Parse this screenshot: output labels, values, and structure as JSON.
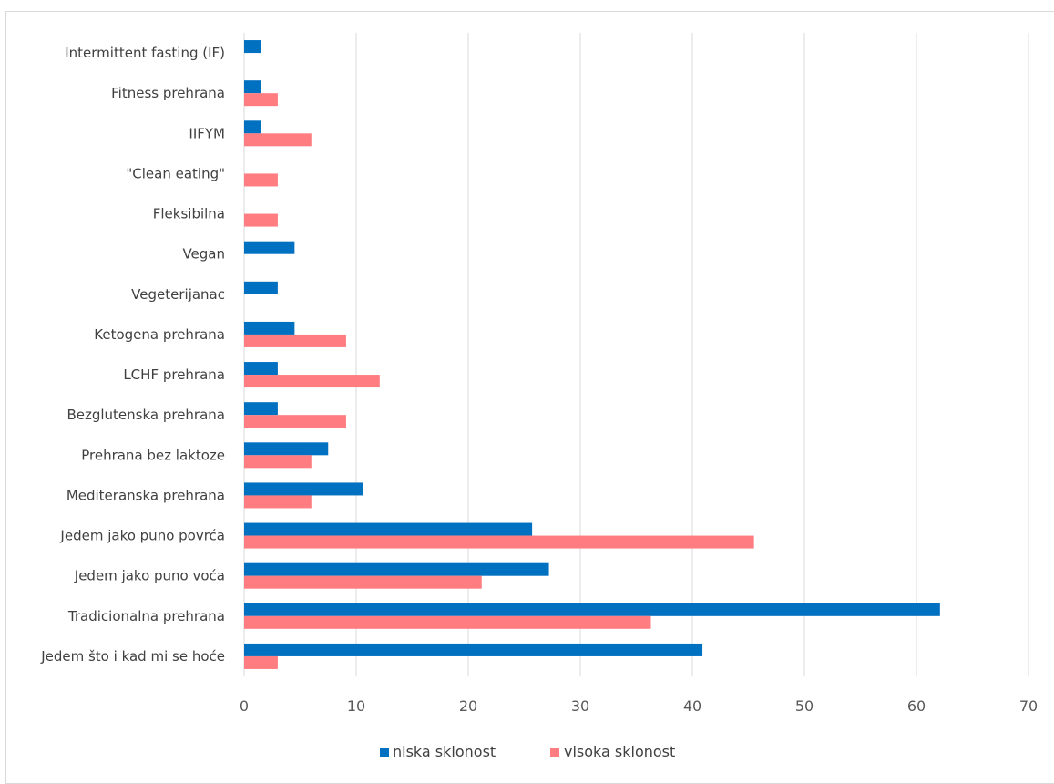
{
  "chart_data": {
    "type": "bar",
    "orientation": "horizontal",
    "categories": [
      "Intermittent fasting (IF)",
      "Fitness prehrana",
      "IIFYM",
      "\"Clean eating\"",
      "Fleksibilna",
      "Vegan",
      "Vegeterijanac",
      "Ketogena prehrana",
      "LCHF prehrana",
      "Bezglutenska prehrana",
      "Prehrana bez laktoze",
      "Mediteranska prehrana",
      "Jedem jako puno povrća",
      "Jedem jako puno voća",
      "Tradicionalna prehrana",
      "Jedem što i kad mi se hoće"
    ],
    "series": [
      {
        "name": "niska sklonost",
        "color": "#0070C0",
        "values": [
          1.5,
          1.5,
          1.5,
          0,
          0,
          4.5,
          3,
          4.5,
          3,
          3,
          7.5,
          10.6,
          25.7,
          27.2,
          62.1,
          40.9
        ]
      },
      {
        "name": "visoka sklonost",
        "color": "#FF7C80",
        "values": [
          0,
          3,
          6,
          3,
          3,
          0,
          0,
          9.1,
          12.1,
          9.1,
          6,
          6,
          45.5,
          21.2,
          36.3,
          3
        ]
      }
    ],
    "xlim": [
      0,
      70
    ],
    "xticks": [
      "0",
      "10",
      "20",
      "30",
      "40",
      "50",
      "60",
      "70"
    ],
    "grid": true,
    "legend": "bottom",
    "title": "",
    "xlabel": "",
    "ylabel": ""
  }
}
